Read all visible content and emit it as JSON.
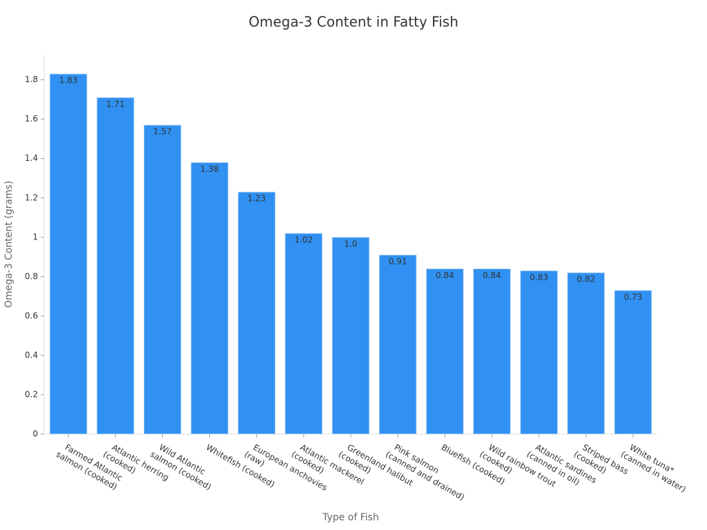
{
  "chart_data": {
    "type": "bar",
    "title": "Omega-3 Content in Fatty Fish",
    "x_label": "Type of Fish",
    "y_label": "Omega-3 Content (grams)",
    "categories": [
      "Farmed Atlantic\nsalmon (cooked)",
      "Atlantic herring\n(cooked)",
      "Wild Atlantic\nsalmon (cooked)",
      "Whitefish (cooked)",
      "European anchovies\n(raw)",
      "Atlantic mackerel\n(cooked)",
      "Greenland halibut\n(cooked)",
      "Pink salmon\n(canned and drained)",
      "Bluefish (cooked)",
      "Wild rainbow trout\n(cooked)",
      "Atlantic sardines\n(canned in oil)",
      "Striped bass\n(cooked)",
      "White tuna*\n(canned in water)"
    ],
    "values": [
      1.83,
      1.71,
      1.57,
      1.38,
      1.23,
      1.02,
      1.0,
      0.91,
      0.84,
      0.84,
      0.83,
      0.82,
      0.73
    ],
    "value_labels": [
      "1.83",
      "1.71",
      "1.57",
      "1.38",
      "1.23",
      "1.02",
      "1.0",
      "0.91",
      "0.84",
      "0.84",
      "0.83",
      "0.82",
      "0.73"
    ],
    "color": "#3091f2",
    "ylim": [
      0,
      1.925
    ],
    "yticks": [
      0,
      0.2,
      0.4,
      0.6,
      0.8,
      1,
      1.2,
      1.4,
      1.6,
      1.8
    ]
  }
}
